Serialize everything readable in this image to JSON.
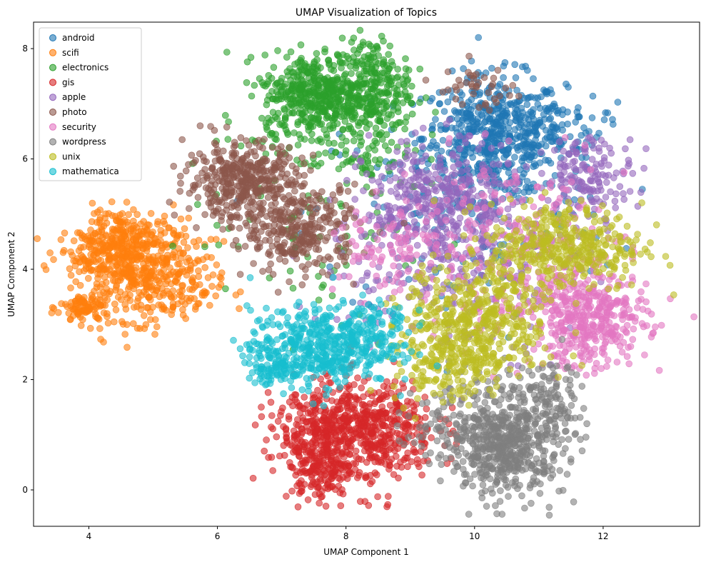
{
  "chart_data": {
    "type": "scatter",
    "title": "UMAP Visualization of Topics",
    "xlabel": "UMAP Component 1",
    "ylabel": "UMAP Component 2",
    "xlim": [
      3.14,
      13.5
    ],
    "ylim": [
      -0.66,
      8.48
    ],
    "xticks": [
      4,
      6,
      8,
      10,
      12
    ],
    "yticks": [
      0,
      2,
      4,
      6,
      8
    ],
    "grid": false,
    "legend_position": "top-left",
    "alpha": 0.6,
    "note": "Point clouds are summarized as clusters (center x/y, spread x/y, approx. point count), all in data units.",
    "series": [
      {
        "name": "android",
        "color": "#1f77b4",
        "clusters": [
          {
            "cx": 10.3,
            "cy": 6.4,
            "sx": 0.55,
            "sy": 0.55,
            "n": 550
          },
          {
            "cx": 9.8,
            "cy": 5.0,
            "sx": 1.2,
            "sy": 1.0,
            "n": 150
          },
          {
            "cx": 11.2,
            "cy": 6.6,
            "sx": 0.4,
            "sy": 0.3,
            "n": 80
          }
        ]
      },
      {
        "name": "scifi",
        "color": "#ff7f0e",
        "clusters": [
          {
            "cx": 4.8,
            "cy": 4.0,
            "sx": 0.45,
            "sy": 0.45,
            "n": 450
          },
          {
            "cx": 3.95,
            "cy": 3.3,
            "sx": 0.2,
            "sy": 0.15,
            "n": 90
          },
          {
            "cx": 4.5,
            "cy": 4.7,
            "sx": 0.3,
            "sy": 0.2,
            "n": 90
          },
          {
            "cx": 4.1,
            "cy": 4.3,
            "sx": 0.3,
            "sy": 0.2,
            "n": 90
          },
          {
            "cx": 5.5,
            "cy": 3.7,
            "sx": 0.3,
            "sy": 0.4,
            "n": 60
          }
        ]
      },
      {
        "name": "electronics",
        "color": "#2ca02c",
        "clusters": [
          {
            "cx": 7.5,
            "cy": 7.2,
            "sx": 0.4,
            "sy": 0.35,
            "n": 400
          },
          {
            "cx": 8.4,
            "cy": 7.3,
            "sx": 0.3,
            "sy": 0.45,
            "n": 250
          },
          {
            "cx": 7.9,
            "cy": 6.4,
            "sx": 0.6,
            "sy": 0.5,
            "n": 150
          },
          {
            "cx": 7.5,
            "cy": 5.0,
            "sx": 1.0,
            "sy": 1.2,
            "n": 80
          }
        ]
      },
      {
        "name": "gis",
        "color": "#d62728",
        "clusters": [
          {
            "cx": 8.3,
            "cy": 1.1,
            "sx": 0.55,
            "sy": 0.45,
            "n": 550
          },
          {
            "cx": 7.7,
            "cy": 0.4,
            "sx": 0.3,
            "sy": 0.3,
            "n": 150
          },
          {
            "cx": 7.4,
            "cy": 1.0,
            "sx": 0.35,
            "sy": 0.4,
            "n": 150
          }
        ]
      },
      {
        "name": "apple",
        "color": "#9467bd",
        "clusters": [
          {
            "cx": 9.5,
            "cy": 5.2,
            "sx": 0.6,
            "sy": 0.55,
            "n": 400
          },
          {
            "cx": 11.8,
            "cy": 5.7,
            "sx": 0.35,
            "sy": 0.35,
            "n": 150
          },
          {
            "cx": 9.6,
            "cy": 4.0,
            "sx": 1.0,
            "sy": 0.8,
            "n": 200
          }
        ]
      },
      {
        "name": "photo",
        "color": "#8c564b",
        "clusters": [
          {
            "cx": 6.4,
            "cy": 5.6,
            "sx": 0.45,
            "sy": 0.35,
            "n": 400
          },
          {
            "cx": 7.3,
            "cy": 4.7,
            "sx": 0.45,
            "sy": 0.4,
            "n": 300
          },
          {
            "cx": 10.0,
            "cy": 7.3,
            "sx": 0.3,
            "sy": 0.2,
            "n": 40
          }
        ]
      },
      {
        "name": "security",
        "color": "#e377c2",
        "clusters": [
          {
            "cx": 11.8,
            "cy": 3.1,
            "sx": 0.45,
            "sy": 0.45,
            "n": 400
          },
          {
            "cx": 10.6,
            "cy": 4.4,
            "sx": 0.9,
            "sy": 0.8,
            "n": 250
          },
          {
            "cx": 8.6,
            "cy": 4.4,
            "sx": 0.4,
            "sy": 0.4,
            "n": 80
          }
        ]
      },
      {
        "name": "wordpress",
        "color": "#7f7f7f",
        "clusters": [
          {
            "cx": 10.5,
            "cy": 0.8,
            "sx": 0.45,
            "sy": 0.45,
            "n": 550
          },
          {
            "cx": 11.1,
            "cy": 1.7,
            "sx": 0.3,
            "sy": 0.3,
            "n": 100
          },
          {
            "cx": 9.7,
            "cy": 1.3,
            "sx": 0.4,
            "sy": 0.4,
            "n": 100
          }
        ]
      },
      {
        "name": "unix",
        "color": "#bcbd22",
        "clusters": [
          {
            "cx": 10.0,
            "cy": 3.0,
            "sx": 0.55,
            "sy": 0.55,
            "n": 500
          },
          {
            "cx": 11.4,
            "cy": 4.4,
            "sx": 0.6,
            "sy": 0.4,
            "n": 400
          },
          {
            "cx": 9.5,
            "cy": 2.2,
            "sx": 0.4,
            "sy": 0.3,
            "n": 100
          }
        ]
      },
      {
        "name": "mathematica",
        "color": "#17becf",
        "clusters": [
          {
            "cx": 7.6,
            "cy": 2.6,
            "sx": 0.55,
            "sy": 0.35,
            "n": 450
          },
          {
            "cx": 6.9,
            "cy": 2.2,
            "sx": 0.2,
            "sy": 0.15,
            "n": 80
          },
          {
            "cx": 8.4,
            "cy": 3.0,
            "sx": 0.3,
            "sy": 0.3,
            "n": 80
          }
        ]
      }
    ]
  }
}
